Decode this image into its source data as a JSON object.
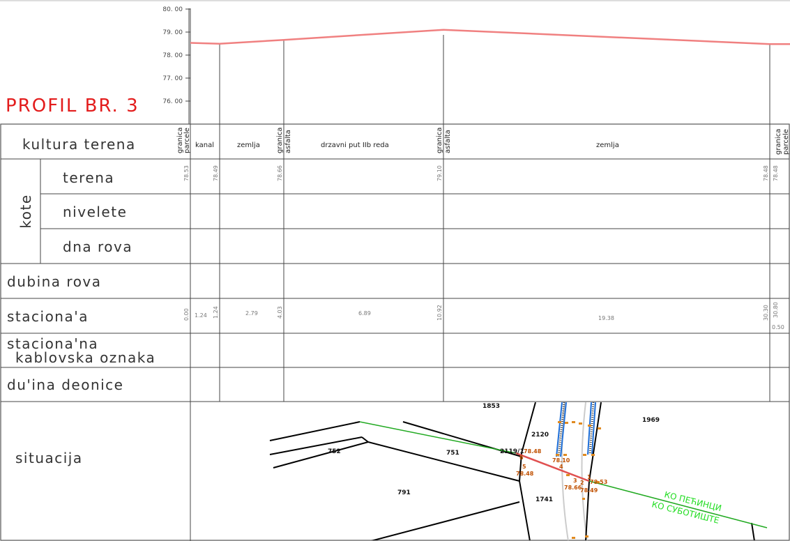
{
  "title": "PROFIL BR. 3",
  "colors": {
    "title": "#e31c1c",
    "profile_line": "#f08080",
    "ko_text": "#22dd22",
    "orange_points": "#e08a20",
    "cable_blue": "#1e6fd9"
  },
  "elevation_axis": {
    "labels": [
      "80. 00",
      "79. 00",
      "78. 00",
      "77. 00",
      "76. 00"
    ],
    "ylim": [
      75.5,
      80
    ]
  },
  "terrain_profile": [
    {
      "x": 0.0,
      "z": 78.53
    },
    {
      "x": 1.24,
      "z": 78.49
    },
    {
      "x": 4.03,
      "z": 78.66
    },
    {
      "x": 10.92,
      "z": 79.1
    },
    {
      "x": 30.3,
      "z": 78.48
    },
    {
      "x": 30.8,
      "z": 78.48
    }
  ],
  "rows": {
    "kultura": "kultura terena",
    "kote": "kote",
    "terena": "terena",
    "nivelete": "nivelete",
    "dna_rova": "dna rova",
    "dubina": "dubina rova",
    "stacionaza": "staciona'a",
    "stac_kabl_1": "staciona'na",
    "stac_kabl_2": "kablovska oznaka",
    "duzina": "du'ina deonice",
    "situacija": "situacija"
  },
  "culture_labels": {
    "granica": "granica",
    "parcele": "parcele",
    "asfalta": "asfalta",
    "kanal": "kanal",
    "zemlja1": "zemlja",
    "put": "drzavni put IIb reda",
    "zemlja2": "zemlja"
  },
  "terena_values": [
    "78.53",
    "78.49",
    "78.66",
    "79.10",
    "78.48",
    "78.48"
  ],
  "stationing_values": [
    "0.00",
    "1.24",
    "1.24",
    "2.79",
    "4.03",
    "6.89",
    "10.92",
    "19.38",
    "30.30",
    "30.80",
    "0.50"
  ],
  "situation": {
    "parcels": [
      "1853",
      "1969",
      "2120",
      "752",
      "751",
      "2119/1",
      "791",
      "1741"
    ],
    "small_numbers": [
      "6",
      "5",
      "4",
      "3",
      "2",
      "1"
    ],
    "elevations": [
      "78.48",
      "78.10",
      "78.48",
      "78.66",
      "78.49",
      "78.53"
    ],
    "ko_1": "КО ПЕЋИНЦИ",
    "ko_2": "КО СУБОТИШТЕ"
  }
}
